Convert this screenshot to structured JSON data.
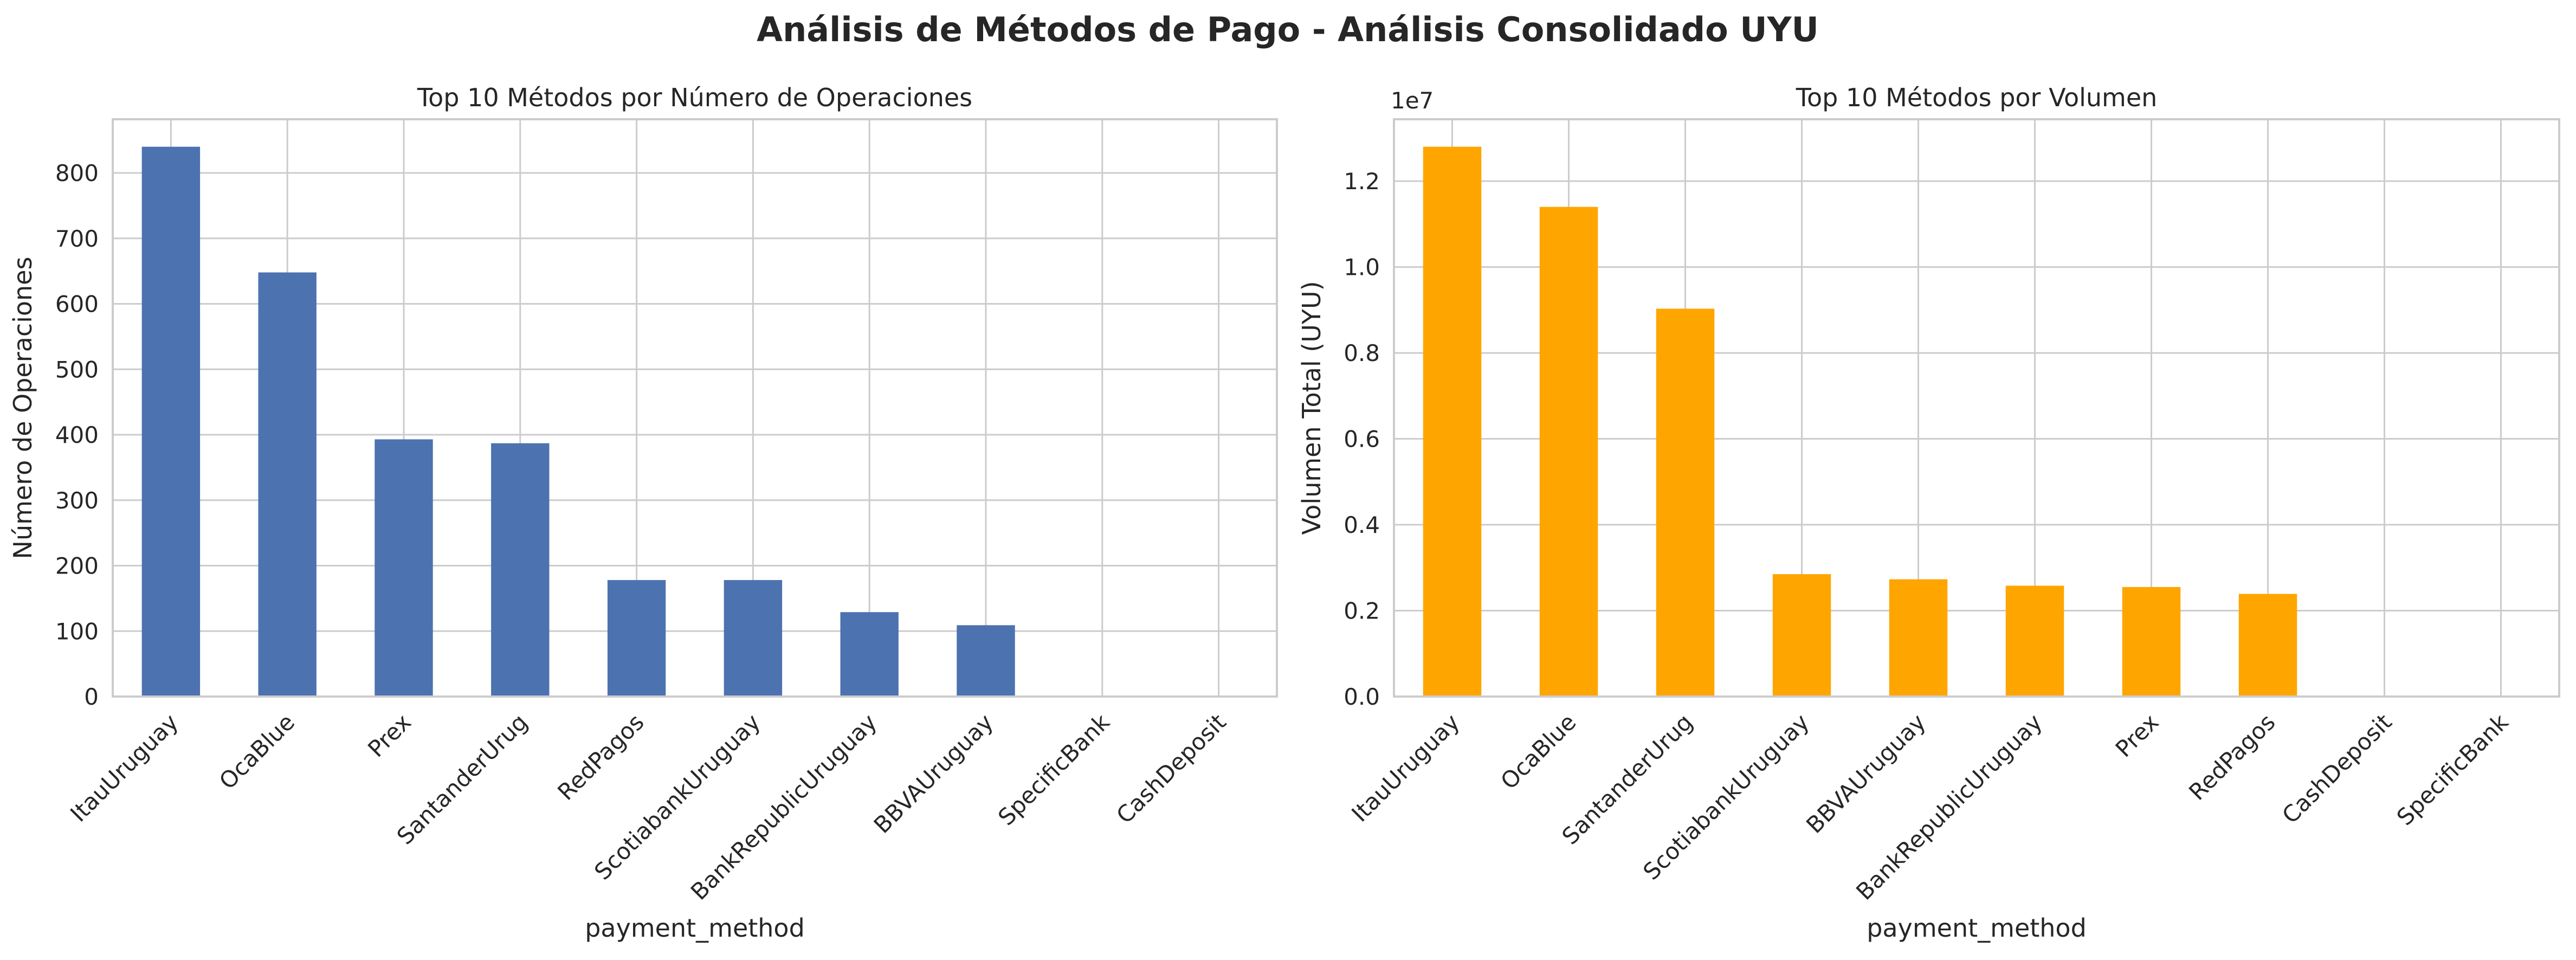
{
  "suptitle": "Análisis de Métodos de Pago - Análisis Consolidado UYU",
  "colors": {
    "left_bars": "#4c72b0",
    "right_bars": "#ffa500",
    "grid": "#cccccc",
    "spine": "#cccccc"
  },
  "chart_data": [
    {
      "type": "bar",
      "title": "Top 10 Métodos por Número de Operaciones",
      "xlabel": "payment_method",
      "ylabel": "Número de Operaciones",
      "categories": [
        "ItauUruguay",
        "OcaBlue",
        "Prex",
        "SantanderUrug",
        "RedPagos",
        "ScotiabankUruguay",
        "BankRepublicUruguay",
        "BBVAUruguay",
        "SpecificBank",
        "CashDeposit"
      ],
      "values": [
        840,
        648,
        393,
        387,
        178,
        178,
        129,
        109,
        0,
        0
      ],
      "yticks": [
        0,
        100,
        200,
        300,
        400,
        500,
        600,
        700,
        800
      ],
      "ytick_labels": [
        "0",
        "100",
        "200",
        "300",
        "400",
        "500",
        "600",
        "700",
        "800"
      ],
      "ylim": [
        0,
        882
      ],
      "offset_text": "",
      "grid": true,
      "color": "#4c72b0"
    },
    {
      "type": "bar",
      "title": "Top 10 Métodos por Volumen",
      "xlabel": "payment_method",
      "ylabel": "Volumen Total (UYU)",
      "categories": [
        "ItauUruguay",
        "OcaBlue",
        "SantanderUrug",
        "ScotiabankUruguay",
        "BBVAUruguay",
        "BankRepublicUruguay",
        "Prex",
        "RedPagos",
        "CashDeposit",
        "SpecificBank"
      ],
      "values": [
        12800000,
        11400000,
        9030000,
        2850000,
        2730000,
        2580000,
        2550000,
        2390000,
        0,
        0
      ],
      "yticks": [
        0,
        2000000,
        4000000,
        6000000,
        8000000,
        10000000,
        12000000
      ],
      "ytick_labels": [
        "0.0",
        "0.2",
        "0.4",
        "0.6",
        "0.8",
        "1.0",
        "1.2"
      ],
      "ylim": [
        0,
        13440000
      ],
      "offset_text": "1e7",
      "grid": true,
      "color": "#ffa500"
    }
  ]
}
